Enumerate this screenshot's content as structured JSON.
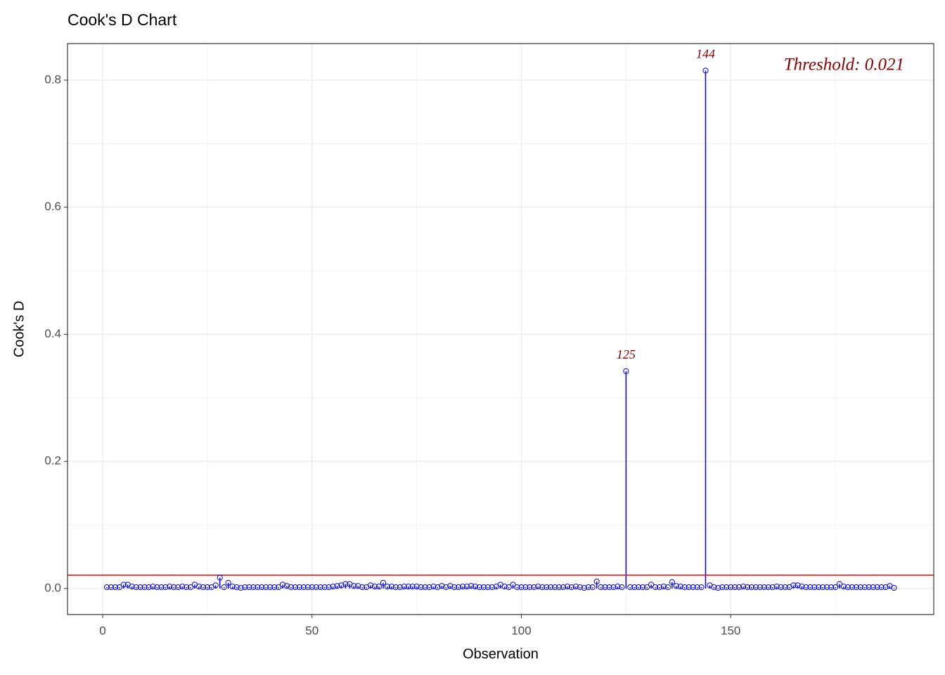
{
  "chart_data": {
    "type": "lollipop",
    "title": "Cook's D Chart",
    "x_label": "Observation",
    "y_label": "Cook's D",
    "x": [
      1,
      2,
      3,
      4,
      5,
      6,
      7,
      8,
      9,
      10,
      11,
      12,
      13,
      14,
      15,
      16,
      17,
      18,
      19,
      20,
      21,
      22,
      23,
      24,
      25,
      26,
      27,
      28,
      29,
      30,
      31,
      32,
      33,
      34,
      35,
      36,
      37,
      38,
      39,
      40,
      41,
      42,
      43,
      44,
      45,
      46,
      47,
      48,
      49,
      50,
      51,
      52,
      53,
      54,
      55,
      56,
      57,
      58,
      59,
      60,
      61,
      62,
      63,
      64,
      65,
      66,
      67,
      68,
      69,
      70,
      71,
      72,
      73,
      74,
      75,
      76,
      77,
      78,
      79,
      80,
      81,
      82,
      83,
      84,
      85,
      86,
      87,
      88,
      89,
      90,
      91,
      92,
      93,
      94,
      95,
      96,
      97,
      98,
      99,
      100,
      101,
      102,
      103,
      104,
      105,
      106,
      107,
      108,
      109,
      110,
      111,
      112,
      113,
      114,
      115,
      116,
      117,
      118,
      119,
      120,
      121,
      122,
      123,
      124,
      125,
      126,
      127,
      128,
      129,
      130,
      131,
      132,
      133,
      134,
      135,
      136,
      137,
      138,
      139,
      140,
      141,
      142,
      143,
      144,
      145,
      146,
      147,
      148,
      149,
      150,
      151,
      152,
      153,
      154,
      155,
      156,
      157,
      158,
      159,
      160,
      161,
      162,
      163,
      164,
      165,
      166,
      167,
      168,
      169,
      170,
      171,
      172,
      173,
      174,
      175,
      176,
      177,
      178,
      179,
      180,
      181,
      182,
      183,
      184,
      185,
      186,
      187,
      188,
      189
    ],
    "values": [
      0.002,
      0.002,
      0.002,
      0.002,
      0.006,
      0.006,
      0.003,
      0.002,
      0.002,
      0.002,
      0.002,
      0.003,
      0.002,
      0.002,
      0.002,
      0.003,
      0.002,
      0.002,
      0.003,
      0.002,
      0.002,
      0.006,
      0.003,
      0.002,
      0.002,
      0.002,
      0.005,
      0.017,
      0.002,
      0.009,
      0.003,
      0.002,
      0.001,
      0.002,
      0.002,
      0.002,
      0.002,
      0.002,
      0.002,
      0.002,
      0.002,
      0.002,
      0.006,
      0.004,
      0.002,
      0.002,
      0.002,
      0.002,
      0.002,
      0.002,
      0.002,
      0.002,
      0.002,
      0.002,
      0.003,
      0.004,
      0.005,
      0.007,
      0.007,
      0.004,
      0.004,
      0.002,
      0.002,
      0.005,
      0.003,
      0.003,
      0.009,
      0.003,
      0.003,
      0.002,
      0.002,
      0.003,
      0.003,
      0.003,
      0.003,
      0.002,
      0.002,
      0.002,
      0.003,
      0.002,
      0.004,
      0.002,
      0.004,
      0.002,
      0.002,
      0.003,
      0.003,
      0.004,
      0.003,
      0.002,
      0.002,
      0.002,
      0.002,
      0.003,
      0.006,
      0.003,
      0.002,
      0.006,
      0.002,
      0.002,
      0.002,
      0.002,
      0.002,
      0.003,
      0.002,
      0.002,
      0.002,
      0.002,
      0.002,
      0.002,
      0.003,
      0.002,
      0.003,
      0.002,
      0.001,
      0.002,
      0.002,
      0.011,
      0.002,
      0.002,
      0.002,
      0.002,
      0.003,
      0.002,
      0.342,
      0.002,
      0.002,
      0.002,
      0.002,
      0.002,
      0.006,
      0.002,
      0.002,
      0.003,
      0.002,
      0.01,
      0.004,
      0.003,
      0.002,
      0.002,
      0.002,
      0.002,
      0.002,
      0.815,
      0.005,
      0.002,
      0.001,
      0.002,
      0.002,
      0.002,
      0.002,
      0.002,
      0.003,
      0.002,
      0.002,
      0.002,
      0.002,
      0.002,
      0.002,
      0.002,
      0.003,
      0.002,
      0.002,
      0.002,
      0.005,
      0.005,
      0.003,
      0.002,
      0.002,
      0.002,
      0.002,
      0.002,
      0.002,
      0.002,
      0.002,
      0.007,
      0.003,
      0.002,
      0.002,
      0.002,
      0.002,
      0.002,
      0.002,
      0.002,
      0.002,
      0.002,
      0.002,
      0.004,
      0.001
    ],
    "color": "#0000ff",
    "labeled_points": [
      125,
      144
    ],
    "label_color": "#8b0000",
    "threshold": 0.021,
    "threshold_color": "#ff0000",
    "threshold_label": "Threshold: 0.021",
    "xlim": [
      -8.4,
      198.5
    ],
    "ylim": [
      -0.041,
      0.8575
    ],
    "xticks": [
      0,
      50,
      100,
      150
    ],
    "yticks": [
      {
        "value": 0,
        "label": "0.0"
      },
      0.2,
      0.4,
      0.6,
      0.8
    ],
    "minor_xticks": [
      25,
      75,
      125,
      175
    ],
    "minor_yticks": [
      0.1,
      0.3,
      0.5,
      0.7
    ],
    "grid": true
  }
}
